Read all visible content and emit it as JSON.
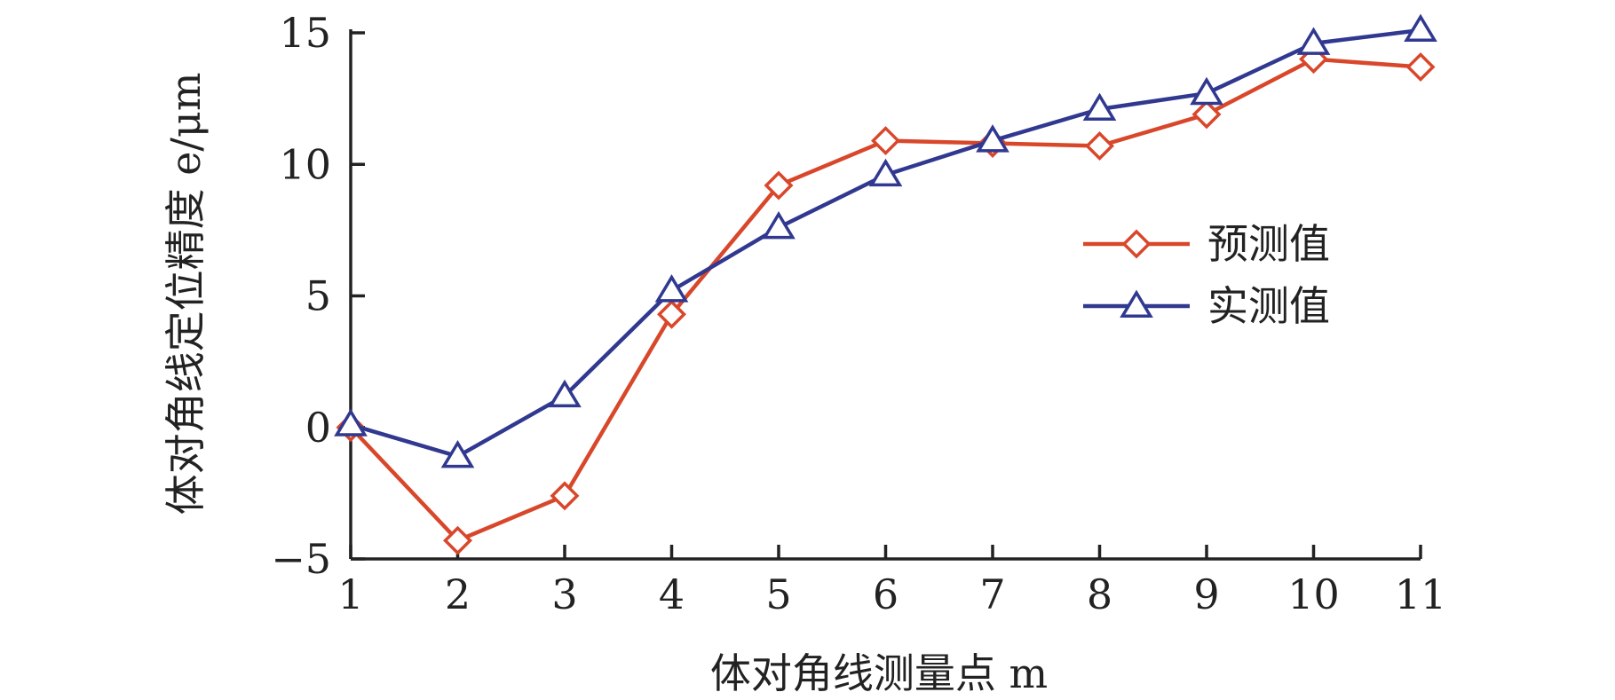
{
  "chart_data": {
    "type": "line",
    "x": [
      1,
      2,
      3,
      4,
      5,
      6,
      7,
      8,
      9,
      10,
      11
    ],
    "xticks": [
      "1",
      "2",
      "3",
      "4",
      "5",
      "6",
      "7",
      "8",
      "9",
      "10",
      "11"
    ],
    "yticks": [
      "15",
      "10",
      "5",
      "0",
      "−5"
    ],
    "xlim": [
      1,
      11
    ],
    "ylim": [
      -5,
      15
    ],
    "xlabel": "体对角线测量点 m",
    "ylabel": "体对角线定位精度 e/μm",
    "grid": false,
    "legend_position": "right",
    "series": [
      {
        "name": "预测值",
        "color": "#d9472b",
        "marker": "diamond",
        "values": [
          0.0,
          -4.3,
          -2.6,
          4.3,
          9.2,
          10.9,
          10.8,
          10.7,
          11.9,
          14.0,
          13.7
        ]
      },
      {
        "name": "实测值",
        "color": "#303890",
        "marker": "triangle",
        "values": [
          0.1,
          -1.1,
          1.2,
          5.2,
          7.6,
          9.6,
          10.9,
          12.1,
          12.7,
          14.6,
          15.1
        ]
      }
    ]
  }
}
